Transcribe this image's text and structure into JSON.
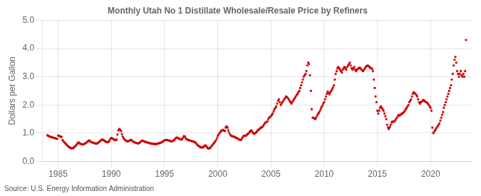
{
  "chart_data": {
    "type": "scatter",
    "title": "Monthly Utah No 1 Distillate Wholesale/Resale Price by Refiners",
    "ylabel": "Dollars per Gallon",
    "annotation": "Source: U.S. Energy Information Administration",
    "color": "#cc0000",
    "marker": "square",
    "grid": true,
    "xlim": [
      1983.5,
      2023.8
    ],
    "xticks": [
      1985,
      1990,
      1995,
      2000,
      2005,
      2010,
      2015,
      2020
    ],
    "ylim": [
      0.0,
      5.0
    ],
    "yticks": [
      {
        "value": 0.0,
        "label": "0.0"
      },
      {
        "value": 1.0,
        "label": "1.0"
      },
      {
        "value": 2.0,
        "label": "2.0"
      },
      {
        "value": 3.0,
        "label": "3.0"
      },
      {
        "value": 4.0,
        "label": "4.0"
      },
      {
        "value": 5.0,
        "label": "5.0"
      }
    ],
    "x": [
      1984.0,
      1984.08,
      1984.17,
      1984.25,
      1984.33,
      1984.42,
      1984.5,
      1984.58,
      1984.67,
      1984.75,
      1984.83,
      1984.92,
      1985.0,
      1985.08,
      1985.17,
      1985.25,
      1985.33,
      1985.42,
      1985.5,
      1985.58,
      1985.67,
      1985.75,
      1985.83,
      1985.92,
      1986.0,
      1986.08,
      1986.17,
      1986.25,
      1986.33,
      1986.42,
      1986.5,
      1986.58,
      1986.67,
      1986.75,
      1986.83,
      1986.92,
      1987.0,
      1987.08,
      1987.17,
      1987.25,
      1987.33,
      1987.42,
      1987.5,
      1987.58,
      1987.67,
      1987.75,
      1987.83,
      1987.92,
      1988.0,
      1988.08,
      1988.17,
      1988.25,
      1988.33,
      1988.42,
      1988.5,
      1988.58,
      1988.67,
      1988.75,
      1988.83,
      1988.92,
      1989.0,
      1989.08,
      1989.17,
      1989.25,
      1989.33,
      1989.42,
      1989.5,
      1989.58,
      1989.67,
      1989.75,
      1989.83,
      1989.92,
      1990.0,
      1990.08,
      1990.17,
      1990.25,
      1990.33,
      1990.42,
      1990.5,
      1990.58,
      1990.67,
      1990.75,
      1990.83,
      1990.92,
      1991.0,
      1991.08,
      1991.17,
      1991.25,
      1991.33,
      1991.42,
      1991.5,
      1991.58,
      1991.67,
      1991.75,
      1991.83,
      1991.92,
      1992.0,
      1992.08,
      1992.17,
      1992.25,
      1992.33,
      1992.42,
      1992.5,
      1992.58,
      1992.67,
      1992.75,
      1992.83,
      1992.92,
      1993.0,
      1993.08,
      1993.17,
      1993.25,
      1993.33,
      1993.42,
      1993.5,
      1993.58,
      1993.67,
      1993.75,
      1993.83,
      1993.92,
      1994.0,
      1994.08,
      1994.17,
      1994.25,
      1994.33,
      1994.42,
      1994.5,
      1994.58,
      1994.67,
      1994.75,
      1994.83,
      1994.92,
      1995.0,
      1995.08,
      1995.17,
      1995.25,
      1995.33,
      1995.42,
      1995.5,
      1995.58,
      1995.67,
      1995.75,
      1995.83,
      1995.92,
      1996.0,
      1996.08,
      1996.17,
      1996.25,
      1996.33,
      1996.42,
      1996.5,
      1996.58,
      1996.67,
      1996.75,
      1996.83,
      1996.92,
      1997.0,
      1997.08,
      1997.17,
      1997.25,
      1997.33,
      1997.42,
      1997.5,
      1997.58,
      1997.67,
      1997.75,
      1997.83,
      1997.92,
      1998.0,
      1998.08,
      1998.17,
      1998.25,
      1998.33,
      1998.42,
      1998.5,
      1998.58,
      1998.67,
      1998.75,
      1998.83,
      1998.92,
      1999.0,
      1999.08,
      1999.17,
      1999.25,
      1999.33,
      1999.42,
      1999.5,
      1999.58,
      1999.67,
      1999.75,
      1999.83,
      1999.92,
      2000.0,
      2000.08,
      2000.17,
      2000.25,
      2000.33,
      2000.42,
      2000.5,
      2000.58,
      2000.67,
      2000.75,
      2000.83,
      2000.92,
      2001.0,
      2001.08,
      2001.17,
      2001.25,
      2001.33,
      2001.42,
      2001.5,
      2001.58,
      2001.67,
      2001.75,
      2001.83,
      2001.92,
      2002.0,
      2002.08,
      2002.17,
      2002.25,
      2002.33,
      2002.42,
      2002.5,
      2002.58,
      2002.67,
      2002.75,
      2002.83,
      2002.92,
      2003.0,
      2003.08,
      2003.17,
      2003.25,
      2003.33,
      2003.42,
      2003.5,
      2003.58,
      2003.67,
      2003.75,
      2003.83,
      2003.92,
      2004.0,
      2004.08,
      2004.17,
      2004.25,
      2004.33,
      2004.42,
      2004.5,
      2004.58,
      2004.67,
      2004.75,
      2004.83,
      2004.92,
      2005.0,
      2005.08,
      2005.17,
      2005.25,
      2005.33,
      2005.42,
      2005.5,
      2005.58,
      2005.67,
      2005.75,
      2005.83,
      2005.92,
      2006.0,
      2006.08,
      2006.17,
      2006.25,
      2006.33,
      2006.42,
      2006.5,
      2006.58,
      2006.67,
      2006.75,
      2006.83,
      2006.92,
      2007.0,
      2007.08,
      2007.17,
      2007.25,
      2007.33,
      2007.42,
      2007.5,
      2007.58,
      2007.67,
      2007.75,
      2007.83,
      2007.92,
      2008.0,
      2008.08,
      2008.17,
      2008.25,
      2008.33,
      2008.42,
      2008.5,
      2008.58,
      2008.67,
      2008.75,
      2008.83,
      2008.92,
      2009.0,
      2009.08,
      2009.17,
      2009.25,
      2009.33,
      2009.42,
      2009.5,
      2009.58,
      2009.67,
      2009.75,
      2009.83,
      2009.92,
      2010.0,
      2010.08,
      2010.17,
      2010.25,
      2010.33,
      2010.42,
      2010.5,
      2010.58,
      2010.67,
      2010.75,
      2010.83,
      2010.92,
      2011.0,
      2011.08,
      2011.17,
      2011.25,
      2011.33,
      2011.42,
      2011.5,
      2011.58,
      2011.67,
      2011.75,
      2011.83,
      2011.92,
      2012.0,
      2012.08,
      2012.17,
      2012.25,
      2012.33,
      2012.42,
      2012.5,
      2012.58,
      2012.67,
      2012.75,
      2012.83,
      2012.92,
      2013.0,
      2013.08,
      2013.17,
      2013.25,
      2013.33,
      2013.42,
      2013.5,
      2013.58,
      2013.67,
      2013.75,
      2013.83,
      2013.92,
      2014.0,
      2014.08,
      2014.17,
      2014.25,
      2014.33,
      2014.42,
      2014.5,
      2014.58,
      2014.67,
      2014.75,
      2014.83,
      2014.92,
      2015.0,
      2015.08,
      2015.17,
      2015.25,
      2015.33,
      2015.42,
      2015.5,
      2015.58,
      2015.67,
      2015.75,
      2015.83,
      2015.92,
      2016.0,
      2016.08,
      2016.17,
      2016.25,
      2016.33,
      2016.42,
      2016.5,
      2016.58,
      2016.67,
      2016.75,
      2016.83,
      2016.92,
      2017.0,
      2017.08,
      2017.17,
      2017.25,
      2017.33,
      2017.42,
      2017.5,
      2017.58,
      2017.67,
      2017.75,
      2017.83,
      2017.92,
      2018.0,
      2018.08,
      2018.17,
      2018.25,
      2018.33,
      2018.42,
      2018.5,
      2018.58,
      2018.67,
      2018.75,
      2018.83,
      2018.92,
      2019.0,
      2019.08,
      2019.17,
      2019.25,
      2019.33,
      2019.42,
      2019.5,
      2019.58,
      2019.67,
      2019.75,
      2019.83,
      2019.92,
      2020.0,
      2020.08,
      2020.17,
      2020.25,
      2020.33,
      2020.42,
      2020.5,
      2020.58,
      2020.67,
      2020.75,
      2020.83,
      2020.92,
      2021.0,
      2021.08,
      2021.17,
      2021.25,
      2021.33,
      2021.42,
      2021.5,
      2021.58,
      2021.67,
      2021.75,
      2021.83,
      2021.92,
      2022.0,
      2022.08,
      2022.17,
      2022.25,
      2022.33,
      2022.42,
      2022.5,
      2022.58,
      2022.67,
      2022.75,
      2022.83,
      2022.92,
      2023.0,
      2023.08,
      2023.17,
      2023.25,
      2023.33
    ],
    "values": [
      0.93,
      0.91,
      0.89,
      0.88,
      0.87,
      0.86,
      0.85,
      0.84,
      0.83,
      0.82,
      0.81,
      0.8,
      0.92,
      0.91,
      0.89,
      0.88,
      0.87,
      0.76,
      0.72,
      0.68,
      0.65,
      0.62,
      0.58,
      0.55,
      0.52,
      0.5,
      0.48,
      0.47,
      0.46,
      0.48,
      0.5,
      0.53,
      0.56,
      0.6,
      0.64,
      0.68,
      0.65,
      0.63,
      0.62,
      0.61,
      0.6,
      0.61,
      0.63,
      0.65,
      0.67,
      0.7,
      0.72,
      0.75,
      0.72,
      0.7,
      0.68,
      0.67,
      0.66,
      0.65,
      0.64,
      0.63,
      0.64,
      0.66,
      0.68,
      0.71,
      0.74,
      0.77,
      0.78,
      0.76,
      0.74,
      0.72,
      0.7,
      0.69,
      0.68,
      0.7,
      0.74,
      0.8,
      0.84,
      0.82,
      0.8,
      0.78,
      0.76,
      0.75,
      0.78,
      0.95,
      1.1,
      1.15,
      1.12,
      1.08,
      0.97,
      0.88,
      0.82,
      0.78,
      0.75,
      0.73,
      0.72,
      0.71,
      0.73,
      0.75,
      0.77,
      0.75,
      0.72,
      0.7,
      0.68,
      0.67,
      0.66,
      0.65,
      0.64,
      0.65,
      0.67,
      0.7,
      0.72,
      0.74,
      0.73,
      0.71,
      0.7,
      0.69,
      0.68,
      0.67,
      0.66,
      0.65,
      0.64,
      0.64,
      0.63,
      0.62,
      0.63,
      0.62,
      0.61,
      0.62,
      0.63,
      0.64,
      0.65,
      0.66,
      0.67,
      0.68,
      0.7,
      0.73,
      0.75,
      0.76,
      0.76,
      0.76,
      0.75,
      0.74,
      0.73,
      0.72,
      0.71,
      0.72,
      0.74,
      0.76,
      0.8,
      0.83,
      0.85,
      0.84,
      0.82,
      0.8,
      0.78,
      0.77,
      0.8,
      0.85,
      0.9,
      0.88,
      0.82,
      0.79,
      0.77,
      0.76,
      0.75,
      0.74,
      0.73,
      0.72,
      0.71,
      0.7,
      0.69,
      0.67,
      0.63,
      0.59,
      0.56,
      0.54,
      0.52,
      0.5,
      0.49,
      0.5,
      0.52,
      0.55,
      0.57,
      0.55,
      0.5,
      0.47,
      0.46,
      0.47,
      0.5,
      0.54,
      0.58,
      0.62,
      0.66,
      0.7,
      0.75,
      0.82,
      0.9,
      0.95,
      1.0,
      1.05,
      1.08,
      1.1,
      1.12,
      1.1,
      1.08,
      1.2,
      1.25,
      1.2,
      1.1,
      1.02,
      0.95,
      0.92,
      0.9,
      0.89,
      0.88,
      0.87,
      0.85,
      0.83,
      0.82,
      0.8,
      0.78,
      0.77,
      0.76,
      0.8,
      0.85,
      0.9,
      0.92,
      0.91,
      0.92,
      0.95,
      0.98,
      1.0,
      1.05,
      1.08,
      1.1,
      1.05,
      1.0,
      0.98,
      1.0,
      1.02,
      1.05,
      1.1,
      1.12,
      1.15,
      1.18,
      1.2,
      1.22,
      1.25,
      1.3,
      1.35,
      1.38,
      1.4,
      1.42,
      1.5,
      1.55,
      1.58,
      1.6,
      1.65,
      1.7,
      1.78,
      1.85,
      1.9,
      1.95,
      2.05,
      2.15,
      2.2,
      2.1,
      2.0,
      2.05,
      2.1,
      2.15,
      2.2,
      2.25,
      2.3,
      2.28,
      2.25,
      2.2,
      2.15,
      2.1,
      2.05,
      2.1,
      2.15,
      2.2,
      2.25,
      2.3,
      2.35,
      2.4,
      2.45,
      2.5,
      2.6,
      2.7,
      2.8,
      2.9,
      3.0,
      3.05,
      3.1,
      3.2,
      3.4,
      3.5,
      3.45,
      3.05,
      2.5,
      1.85,
      1.55,
      1.55,
      1.52,
      1.5,
      1.55,
      1.62,
      1.68,
      1.72,
      1.78,
      1.85,
      1.92,
      1.98,
      2.05,
      2.1,
      2.2,
      2.3,
      2.4,
      2.48,
      2.42,
      2.38,
      2.45,
      2.5,
      2.55,
      2.62,
      2.7,
      2.9,
      3.1,
      3.2,
      3.3,
      3.35,
      3.3,
      3.25,
      3.2,
      3.15,
      3.25,
      3.3,
      3.35,
      3.3,
      3.25,
      3.35,
      3.4,
      3.45,
      3.5,
      3.4,
      3.3,
      3.25,
      3.3,
      3.35,
      3.25,
      3.2,
      3.25,
      3.28,
      3.3,
      3.32,
      3.3,
      3.25,
      3.22,
      3.2,
      3.25,
      3.3,
      3.35,
      3.38,
      3.4,
      3.38,
      3.35,
      3.32,
      3.3,
      3.28,
      3.2,
      2.9,
      2.6,
      2.3,
      2.1,
      1.8,
      1.7,
      1.8,
      1.9,
      1.95,
      1.9,
      1.85,
      1.8,
      1.7,
      1.6,
      1.5,
      1.3,
      1.2,
      1.15,
      1.22,
      1.3,
      1.38,
      1.42,
      1.4,
      1.42,
      1.45,
      1.5,
      1.55,
      1.6,
      1.65,
      1.62,
      1.65,
      1.68,
      1.7,
      1.72,
      1.75,
      1.8,
      1.85,
      1.9,
      1.95,
      2.0,
      2.1,
      2.15,
      2.2,
      2.3,
      2.4,
      2.45,
      2.42,
      2.4,
      2.35,
      2.3,
      2.2,
      2.1,
      2.05,
      2.1,
      2.12,
      2.15,
      2.18,
      2.15,
      2.12,
      2.1,
      2.08,
      2.05,
      2.0,
      1.95,
      1.9,
      1.8,
      1.2,
      1.0,
      1.05,
      1.1,
      1.15,
      1.2,
      1.25,
      1.3,
      1.35,
      1.45,
      1.55,
      1.65,
      1.75,
      1.9,
      2.0,
      2.1,
      2.2,
      2.3,
      2.4,
      2.5,
      2.6,
      2.7,
      2.9,
      3.1,
      3.4,
      3.6,
      3.7,
      3.5,
      3.2,
      3.1,
      3.0,
      3.1,
      3.2,
      3.05,
      3.0,
      3.1,
      3.0,
      3.2,
      4.3
    ]
  }
}
